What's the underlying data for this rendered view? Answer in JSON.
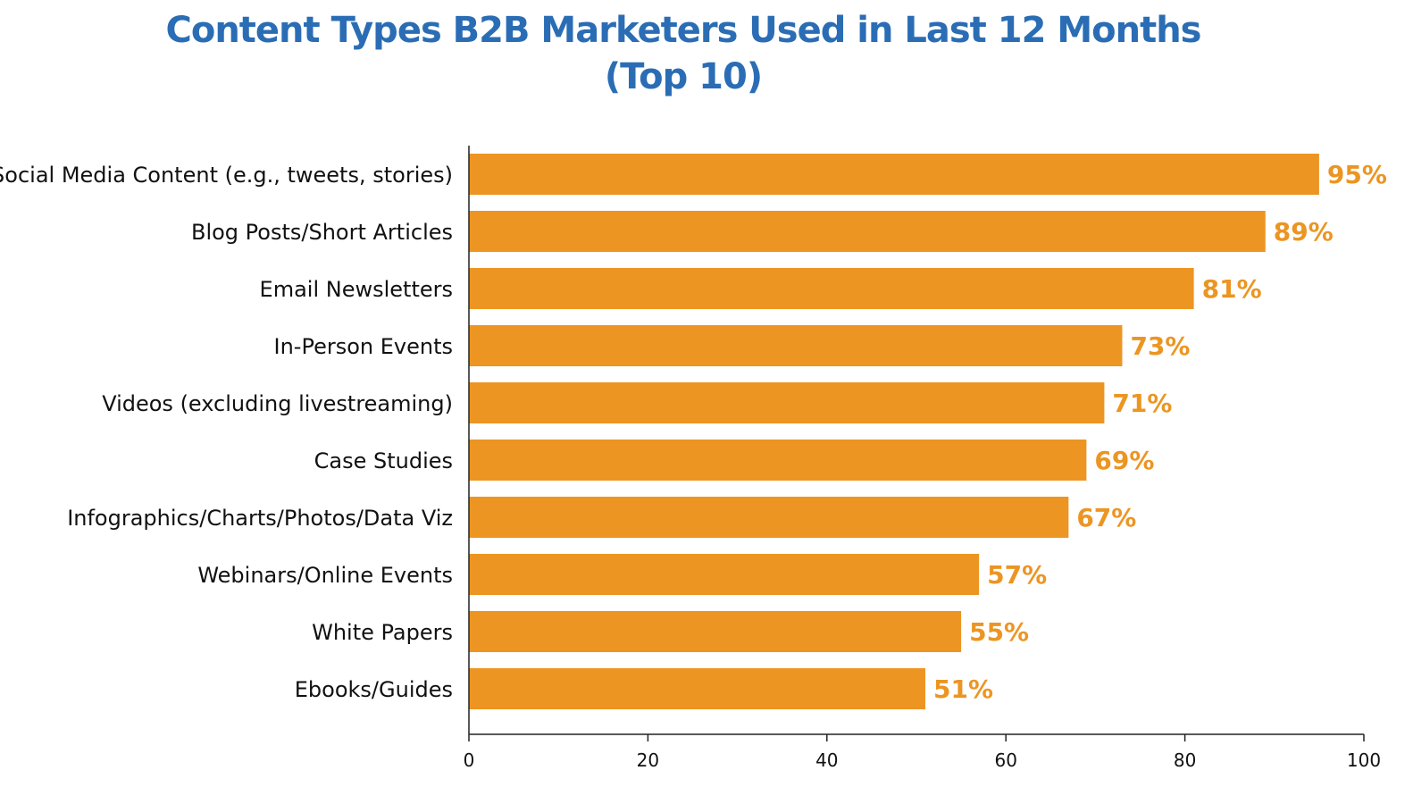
{
  "title": {
    "line1": "Content Types B2B Marketers Used in Last 12 Months",
    "line2": "(Top 10)"
  },
  "colors": {
    "bar": "#ec9522",
    "title": "#2a6db5",
    "value_label": "#ec9522",
    "axis": "#222222"
  },
  "chart_data": {
    "type": "bar",
    "orientation": "horizontal",
    "title": "Content Types B2B Marketers Used in Last 12 Months (Top 10)",
    "categories": [
      "Social Media Content (e.g., tweets, stories)",
      "Blog Posts/Short Articles",
      "Email Newsletters",
      "In-Person Events",
      "Videos (excluding livestreaming)",
      "Case Studies",
      "Infographics/Charts/Photos/Data Viz",
      "Webinars/Online Events",
      "White Papers",
      "Ebooks/Guides"
    ],
    "values": [
      95,
      89,
      81,
      73,
      71,
      69,
      67,
      57,
      55,
      51
    ],
    "value_labels": [
      "95%",
      "89%",
      "81%",
      "73%",
      "71%",
      "69%",
      "67%",
      "57%",
      "55%",
      "51%"
    ],
    "xlabel": "",
    "ylabel": "",
    "xlim": [
      0,
      100
    ],
    "xticks": [
      0,
      20,
      40,
      60,
      80,
      100
    ],
    "grid": false,
    "legend": "none"
  }
}
